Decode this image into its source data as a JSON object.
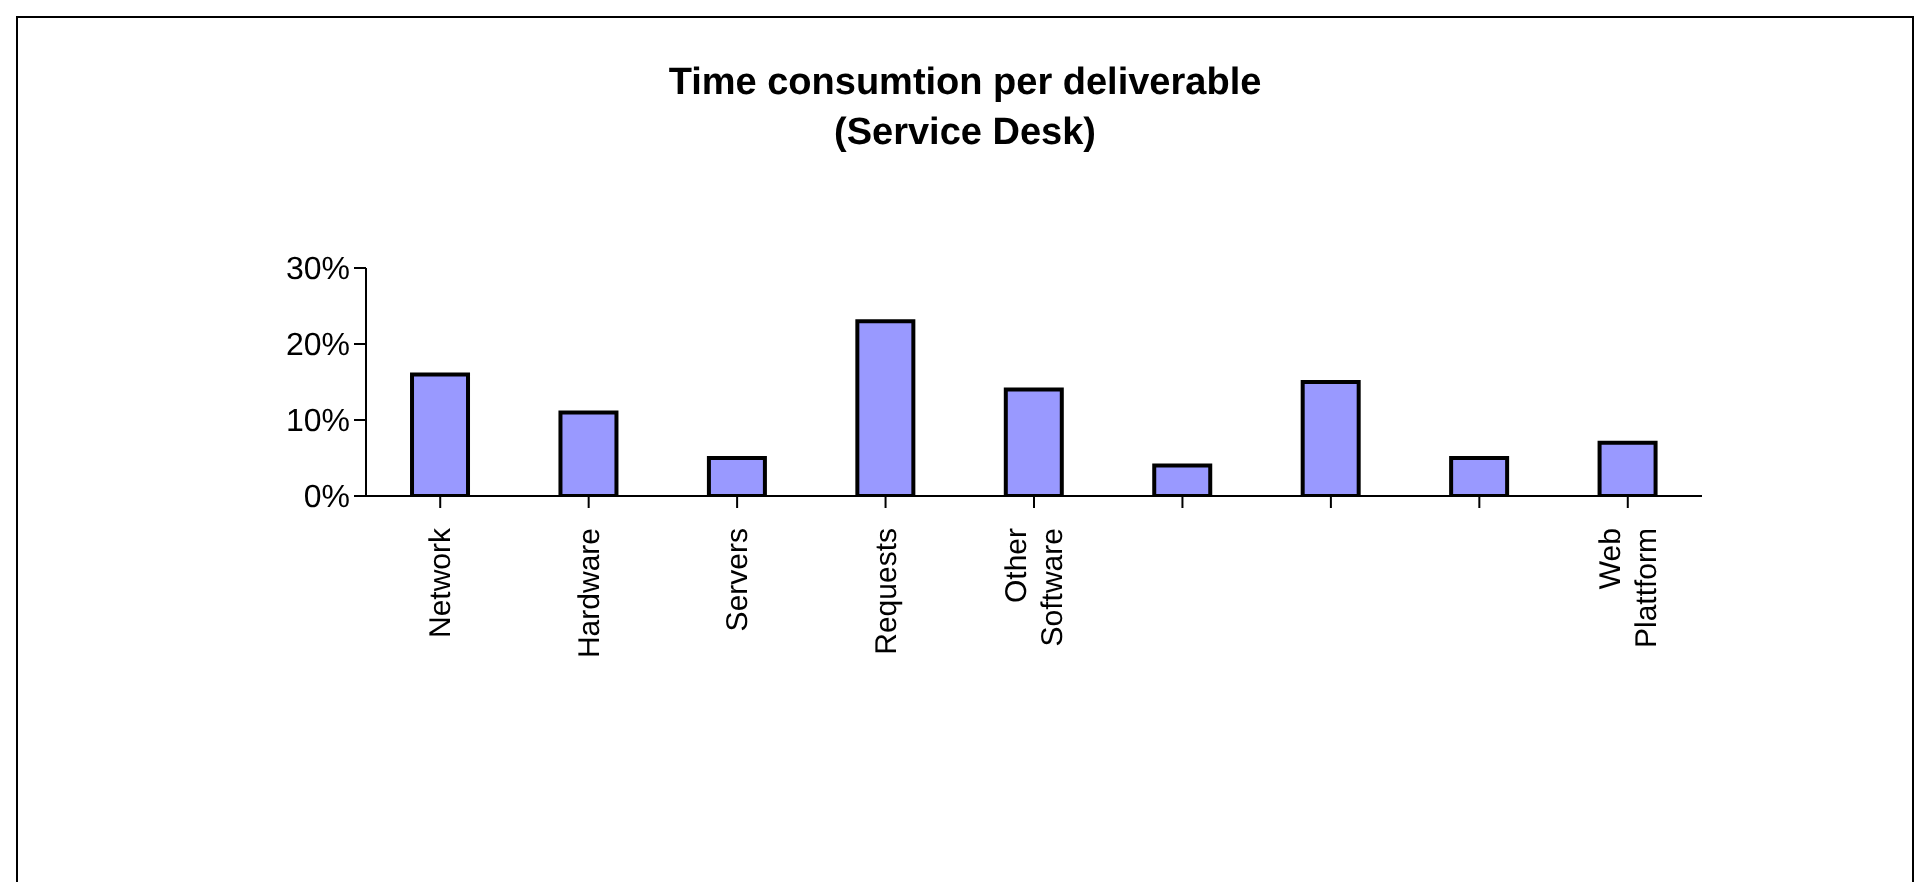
{
  "chart_data": {
    "type": "bar",
    "title": "Time consumtion per deliverable",
    "subtitle": "(Service Desk)",
    "categories": [
      "Network",
      "Hardware",
      "Servers",
      "Requests",
      "Other Software",
      null,
      null,
      null,
      "Web Plattform"
    ],
    "values": [
      16,
      11,
      5,
      23,
      14,
      4,
      15,
      5,
      7
    ],
    "color": "#9999ff",
    "ylim": [
      0,
      30
    ],
    "yticks": [
      {
        "value": 0,
        "label": "0%"
      },
      {
        "value": 10,
        "label": "10%"
      },
      {
        "value": 20,
        "label": "20%"
      },
      {
        "value": 30,
        "label": "30%"
      }
    ],
    "grid": false,
    "legend": false
  }
}
